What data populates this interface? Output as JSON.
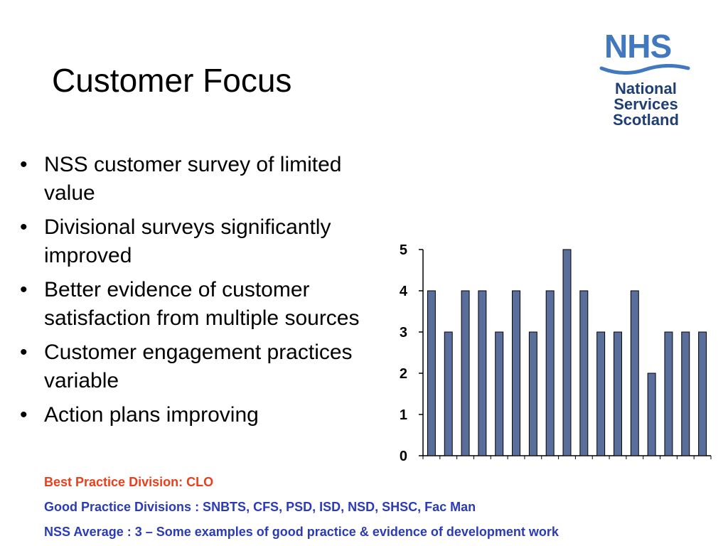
{
  "slide": {
    "title": "Customer Focus",
    "bullets": [
      "NSS customer survey of limited value",
      "Divisional surveys significantly improved",
      "Better evidence of customer satisfaction from multiple sources",
      "Customer engagement practices variable",
      "Action plans improving"
    ],
    "bullet_glyph": "•",
    "notes": {
      "best": "Best Practice Division: CLO",
      "good": "Good Practice Divisions : SNBTS, CFS, PSD, ISD, NSD, SHSC, Fac Man",
      "average": "NSS Average : 3 – Some examples of good practice & evidence of development work"
    },
    "colors": {
      "best": "#e8401c",
      "good": "#2a3bb5",
      "bar": "#5a6e9c"
    }
  },
  "logo": {
    "mark": "NHS",
    "lines": [
      "National",
      "Services",
      "Scotland"
    ],
    "colors": {
      "mark": "#4178be",
      "text": "#1f3f74"
    }
  },
  "chart_data": {
    "type": "bar",
    "values": [
      4,
      3,
      4,
      4,
      3,
      4,
      3,
      4,
      5,
      4,
      3,
      3,
      4,
      2,
      3,
      3,
      3
    ],
    "yticks": [
      "0",
      "1",
      "2",
      "3",
      "4",
      "5"
    ],
    "ylim": [
      0,
      5
    ],
    "grid": false,
    "legend": "none"
  }
}
